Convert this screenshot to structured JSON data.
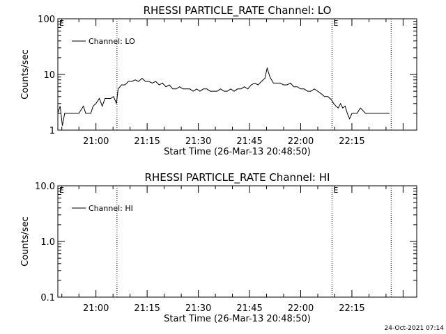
{
  "footer": {
    "timestamp": "24-Oct-2021 07:14"
  },
  "chart_data": [
    {
      "type": "line",
      "title": "RHESSI PARTICLE_RATE Channel: LO",
      "xlabel": "Start Time (26-Mar-13 20:48:50)",
      "ylabel": "Counts/sec",
      "yscale": "log",
      "ylim": [
        1,
        100
      ],
      "y_ticks": [
        1,
        10,
        100
      ],
      "y_tick_labels": [
        "1",
        "10",
        "100"
      ],
      "xlim": [
        "20:48:50",
        "22:34:00"
      ],
      "x_ticks": [
        "21:00",
        "21:15",
        "21:30",
        "21:45",
        "22:00",
        "22:15"
      ],
      "legend": {
        "position": "top-left",
        "entries": [
          "Channel: LO"
        ]
      },
      "annotations": [
        {
          "text": "E",
          "x": "20:48:50"
        },
        {
          "text": "E",
          "x": "22:09:10"
        }
      ],
      "vlines": [
        "21:06:10",
        "22:09:10",
        "22:26:30"
      ],
      "series": [
        {
          "name": "Channel: LO",
          "x": [
            "20:48:50",
            "20:49:30",
            "20:50:10",
            "20:50:50",
            "20:51:30",
            "20:52:10",
            "20:53:30",
            "20:55:00",
            "20:56:20",
            "20:57:00",
            "20:57:40",
            "20:58:30",
            "20:59:10",
            "21:00:00",
            "21:01:00",
            "21:01:50",
            "21:02:40",
            "21:03:30",
            "21:04:20",
            "21:05:10",
            "21:06:00",
            "21:06:30",
            "21:07:30",
            "21:08:30",
            "21:09:30",
            "21:10:30",
            "21:11:30",
            "21:12:30",
            "21:13:30",
            "21:14:30",
            "21:15:30",
            "21:16:30",
            "21:17:30",
            "21:18:30",
            "21:19:30",
            "21:20:30",
            "21:21:30",
            "21:22:30",
            "21:23:30",
            "21:24:30",
            "21:25:30",
            "21:26:30",
            "21:27:30",
            "21:28:30",
            "21:29:30",
            "21:30:30",
            "21:31:30",
            "21:32:30",
            "21:33:30",
            "21:34:30",
            "21:35:30",
            "21:36:30",
            "21:37:30",
            "21:38:30",
            "21:39:30",
            "21:40:30",
            "21:41:30",
            "21:42:30",
            "21:43:30",
            "21:44:30",
            "21:45:30",
            "21:46:30",
            "21:47:30",
            "21:48:30",
            "21:49:30",
            "21:50:10",
            "21:51:00",
            "21:52:00",
            "21:53:00",
            "21:54:00",
            "21:55:00",
            "21:56:00",
            "21:57:00",
            "21:58:00",
            "21:59:00",
            "22:00:00",
            "22:01:00",
            "22:02:00",
            "22:03:00",
            "22:04:00",
            "22:05:00",
            "22:06:00",
            "22:07:00",
            "22:08:00",
            "22:09:00",
            "22:09:40",
            "22:10:20",
            "22:11:00",
            "22:11:40",
            "22:12:20",
            "22:13:00",
            "22:13:40",
            "22:14:20",
            "22:15:00",
            "22:15:40",
            "22:16:30",
            "22:17:30",
            "22:19:00",
            "22:21:00",
            "22:23:00",
            "22:26:00"
          ],
          "values": [
            2,
            2.7,
            1.2,
            2,
            2,
            2,
            2,
            2,
            2.7,
            2,
            2,
            2,
            2.7,
            3,
            3.7,
            2.7,
            3.7,
            3.7,
            3.7,
            4,
            3,
            5.5,
            6.5,
            6.5,
            7.5,
            7.5,
            8,
            7.5,
            8.5,
            7.5,
            7.5,
            7,
            7.5,
            6.5,
            7,
            6,
            6.5,
            5.5,
            5.5,
            6,
            5.5,
            5.5,
            5.5,
            5,
            5.5,
            5,
            5.5,
            5.5,
            5,
            5,
            5,
            5.5,
            5,
            5,
            5.5,
            5,
            5.5,
            5.5,
            6,
            5.5,
            6.5,
            7,
            6.5,
            7.5,
            8.5,
            13,
            9,
            7,
            7,
            7,
            6.5,
            6.5,
            7,
            6,
            6,
            5.5,
            5.5,
            5,
            5,
            5.5,
            5,
            4.5,
            4,
            4,
            3.5,
            3,
            2.7,
            2.5,
            3,
            2.5,
            2.7,
            2,
            1.6,
            2,
            2,
            2,
            2.5,
            2,
            2,
            2,
            2
          ]
        }
      ]
    },
    {
      "type": "line",
      "title": "RHESSI PARTICLE_RATE Channel: HI",
      "xlabel": "Start Time (26-Mar-13 20:48:50)",
      "ylabel": "Counts/sec",
      "yscale": "log",
      "ylim": [
        0.1,
        10
      ],
      "y_ticks": [
        0.1,
        1,
        10
      ],
      "y_tick_labels": [
        "0.1",
        "1.0",
        "10.0"
      ],
      "xlim": [
        "20:48:50",
        "22:34:00"
      ],
      "x_ticks": [
        "21:00",
        "21:15",
        "21:30",
        "21:45",
        "22:00",
        "22:15"
      ],
      "legend": {
        "position": "top-left",
        "entries": [
          "Channel: HI"
        ]
      },
      "annotations": [
        {
          "text": "E",
          "x": "20:48:50"
        },
        {
          "text": "E",
          "x": "22:09:10"
        }
      ],
      "vlines": [
        "21:06:10",
        "22:09:10",
        "22:26:30"
      ],
      "series": [
        {
          "name": "Channel: HI",
          "x": [],
          "values": []
        }
      ]
    }
  ]
}
